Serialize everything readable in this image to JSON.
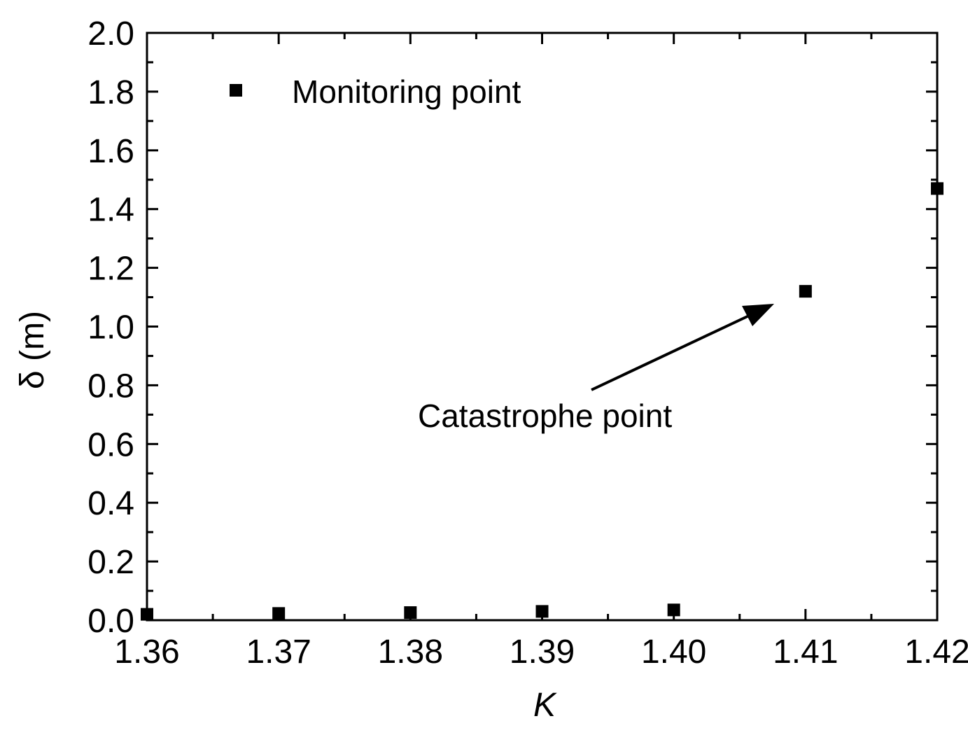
{
  "chart_data": {
    "type": "scatter",
    "xlabel": "K",
    "ylabel": "δ (m)",
    "xlim": [
      1.36,
      1.42
    ],
    "ylim": [
      0.0,
      2.0
    ],
    "x_ticks": [
      "1.36",
      "1.37",
      "1.38",
      "1.39",
      "1.40",
      "1.41",
      "1.42"
    ],
    "y_ticks": [
      "0.0",
      "0.2",
      "0.4",
      "0.6",
      "0.8",
      "1.0",
      "1.2",
      "1.4",
      "1.6",
      "1.8",
      "2.0"
    ],
    "x_tick_values": [
      1.36,
      1.37,
      1.38,
      1.39,
      1.4,
      1.41,
      1.42
    ],
    "y_tick_values": [
      0.0,
      0.2,
      0.4,
      0.6,
      0.8,
      1.0,
      1.2,
      1.4,
      1.6,
      1.8,
      2.0
    ],
    "series": [
      {
        "name": "Monitoring point",
        "marker": "square",
        "color": "#000000",
        "x": [
          1.36,
          1.37,
          1.38,
          1.39,
          1.4,
          1.41,
          1.42
        ],
        "y": [
          0.02,
          0.023,
          0.026,
          0.03,
          0.035,
          1.12,
          1.47
        ]
      }
    ],
    "legend": {
      "position": "top-left",
      "entries": [
        "Monitoring point"
      ]
    },
    "annotations": [
      {
        "text": "Catastrophe point",
        "points_to": {
          "x": 1.41,
          "y": 1.12
        }
      }
    ],
    "grid": false
  }
}
